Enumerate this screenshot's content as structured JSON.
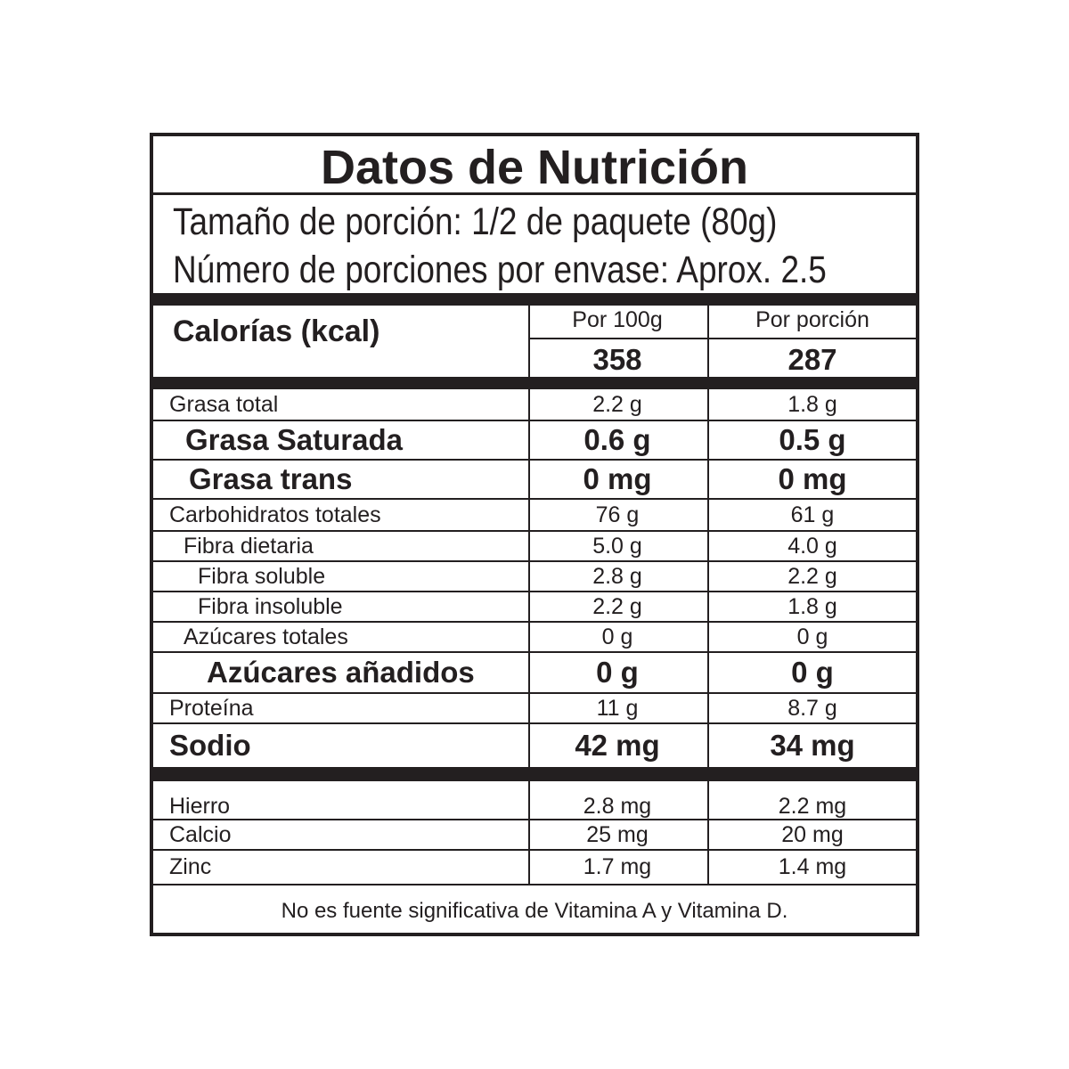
{
  "title": "Datos de Nutrición",
  "serving_size": "Tamaño de porción: 1/2 de paquete (80g)",
  "servings_per_container": "Número de porciones por envase: Aprox. 2.5",
  "calories": {
    "label": "Calorías (kcal)",
    "col1_header": "Por 100g",
    "col2_header": "Por porción",
    "per_100g": "358",
    "per_serving": "287"
  },
  "nutrients": [
    {
      "name": "Grasa total",
      "per_100g": "2.2 g",
      "per_serving": "1.8 g"
    },
    {
      "name": "Grasa Saturada",
      "per_100g": "0.6 g",
      "per_serving": "0.5 g"
    },
    {
      "name": "Grasa trans",
      "per_100g": "0 mg",
      "per_serving": "0 mg"
    },
    {
      "name": "Carbohidratos totales",
      "per_100g": "76 g",
      "per_serving": "61 g"
    },
    {
      "name": "Fibra dietaria",
      "per_100g": "5.0 g",
      "per_serving": "4.0 g"
    },
    {
      "name": "Fibra soluble",
      "per_100g": "2.8 g",
      "per_serving": "2.2 g"
    },
    {
      "name": "Fibra insoluble",
      "per_100g": "2.2 g",
      "per_serving": "1.8 g"
    },
    {
      "name": "Azúcares totales",
      "per_100g": "0 g",
      "per_serving": "0 g"
    },
    {
      "name": "Azúcares añadidos",
      "per_100g": "0 g",
      "per_serving": "0 g"
    },
    {
      "name": "Proteína",
      "per_100g": "11 g",
      "per_serving": "8.7 g"
    },
    {
      "name": "Sodio",
      "per_100g": "42 mg",
      "per_serving": "34 mg"
    }
  ],
  "minerals": [
    {
      "name": "Hierro",
      "per_100g": "2.8 mg",
      "per_serving": "2.2 mg"
    },
    {
      "name": "Calcio",
      "per_100g": "25 mg",
      "per_serving": "20 mg"
    },
    {
      "name": "Zinc",
      "per_100g": "1.7 mg",
      "per_serving": "1.4 mg"
    }
  ],
  "footnote": "No es fuente significativa de Vitamina A y Vitamina D."
}
